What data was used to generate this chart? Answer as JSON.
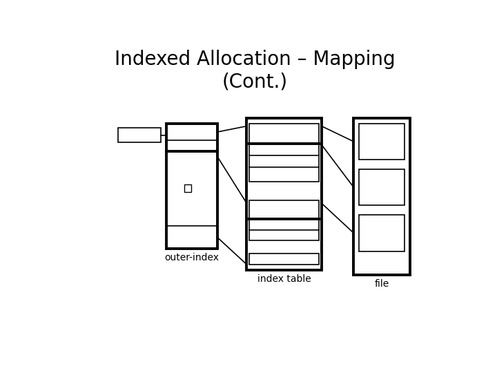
{
  "title": "Indexed Allocation – Mapping\n(Cont.)",
  "title_fontsize": 20,
  "bg_color": "#ffffff",
  "label_outer_index": "outer-index",
  "label_index_table": "index table",
  "label_file": "file",
  "label_fontsize": 10,
  "fig_w": 7.2,
  "fig_h": 5.4,
  "dpi": 100
}
